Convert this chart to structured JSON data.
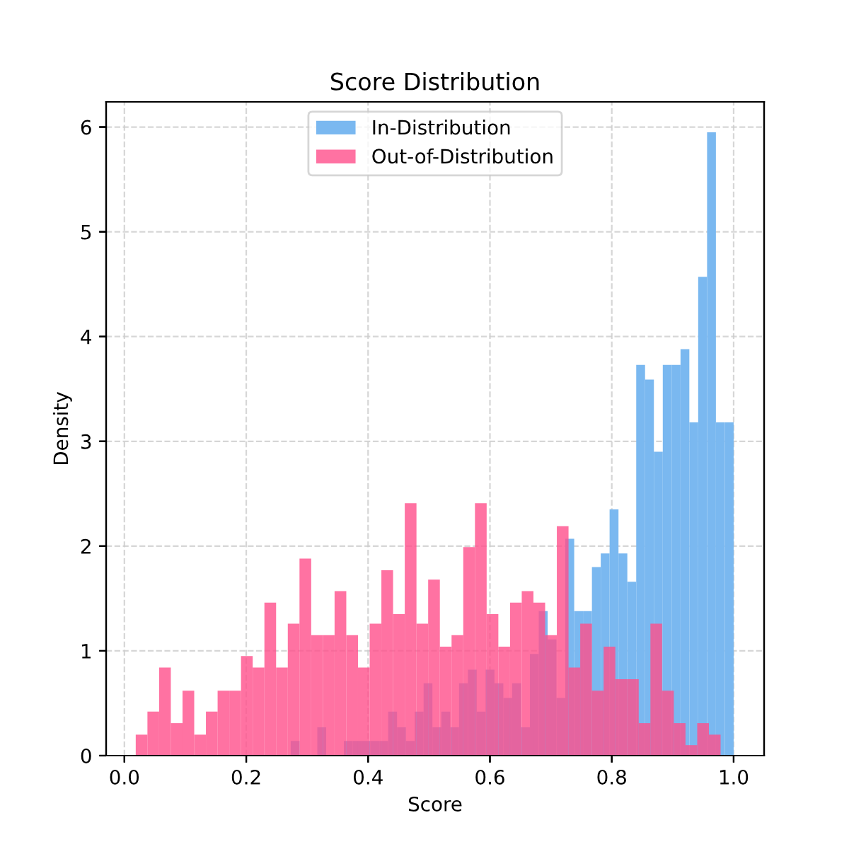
{
  "chart_data": [
    {
      "type": "histogram",
      "title": "Score Distribution",
      "xlabel": "Score",
      "ylabel": "Density",
      "xlim": [
        -0.03,
        1.05
      ],
      "ylim": [
        0,
        6.24
      ],
      "xticks": [
        {
          "value": 0,
          "label": "0.0"
        },
        {
          "value": 0.2,
          "label": "0.2"
        },
        {
          "value": 0.4,
          "label": "0.4"
        },
        {
          "value": 0.6,
          "label": "0.6"
        },
        {
          "value": 0.8,
          "label": "0.8"
        },
        {
          "value": 1,
          "label": "1.0"
        }
      ],
      "yticks": [
        0,
        1,
        2,
        3,
        4,
        5,
        6
      ],
      "grid": true,
      "legend": "top",
      "bins": [
        0.273,
        0.2875,
        0.3021,
        0.3166,
        0.3312,
        0.3457,
        0.3602,
        0.3748,
        0.3893,
        0.4039,
        0.4184,
        0.4329,
        0.4475,
        0.462,
        0.4766,
        0.4911,
        0.5056,
        0.5202,
        0.5347,
        0.5493,
        0.5638,
        0.5783,
        0.5929,
        0.6074,
        0.622,
        0.6365,
        0.651,
        0.6656,
        0.6801,
        0.6947,
        0.7092,
        0.7237,
        0.7383,
        0.7528,
        0.7674,
        0.7819,
        0.7964,
        0.811,
        0.8255,
        0.8401,
        0.8546,
        0.8691,
        0.8837,
        0.8982,
        0.9128,
        0.9273,
        0.9418,
        0.9564,
        0.9709,
        0.9855,
        1.0
      ],
      "series": [
        {
          "name": "In-Distribution",
          "color": "#7ab8f0",
          "values": [
            0.14,
            0,
            0,
            0.27,
            0,
            0,
            0.14,
            0.14,
            0.14,
            0.14,
            0.14,
            0.42,
            0.27,
            0.14,
            0.42,
            0.69,
            0.27,
            0.42,
            0.27,
            0.69,
            0.82,
            0.42,
            0.82,
            0.69,
            0.55,
            0.69,
            0.27,
            0.97,
            1.38,
            1.11,
            0.55,
            2.07,
            1.38,
            1.38,
            1.8,
            1.93,
            2.35,
            1.93,
            1.66,
            3.73,
            3.59,
            2.9,
            3.73,
            3.73,
            3.88,
            3.18,
            4.57,
            5.95,
            3.18,
            3.18
          ]
        }
      ]
    },
    {
      "type": "histogram",
      "xlim": [
        -0.03,
        1.05
      ],
      "ylim": [
        0,
        6.24
      ],
      "xticks": [
        0,
        0.2,
        0.4,
        0.6,
        0.8,
        1
      ],
      "yticks": [
        0,
        1,
        2,
        3,
        4,
        5,
        6
      ],
      "tick_labels": false,
      "legend": "top",
      "bins": [
        0.0186,
        0.0378,
        0.057,
        0.0762,
        0.0954,
        0.1146,
        0.1338,
        0.153,
        0.1722,
        0.1914,
        0.2106,
        0.2298,
        0.249,
        0.2682,
        0.2874,
        0.3066,
        0.3258,
        0.345,
        0.3642,
        0.3834,
        0.4026,
        0.4218,
        0.441,
        0.4602,
        0.4794,
        0.4986,
        0.5178,
        0.537,
        0.5562,
        0.5754,
        0.5946,
        0.6138,
        0.633,
        0.6522,
        0.6714,
        0.6906,
        0.7098,
        0.729,
        0.7482,
        0.7674,
        0.7866,
        0.8058,
        0.825,
        0.8442,
        0.8634,
        0.8826,
        0.9018,
        0.921,
        0.9402,
        0.9594,
        0.9786
      ],
      "series": [
        {
          "name": "Out-of-Distribution",
          "color": "#ff4f8b",
          "values": [
            0.2,
            0.42,
            0.84,
            0.31,
            0.62,
            0.2,
            0.42,
            0.62,
            0.62,
            0.95,
            0.84,
            1.46,
            0.84,
            1.26,
            1.88,
            1.15,
            1.15,
            1.57,
            1.15,
            0.84,
            1.26,
            1.77,
            1.35,
            2.41,
            1.26,
            1.68,
            1.04,
            1.15,
            1.99,
            2.41,
            1.35,
            1.04,
            1.46,
            1.57,
            1.46,
            1.15,
            2.19,
            0.84,
            1.26,
            0.62,
            1.04,
            0.73,
            0.73,
            0.31,
            1.26,
            0.62,
            0.31,
            0.1,
            0.31,
            0.2
          ]
        }
      ]
    }
  ]
}
